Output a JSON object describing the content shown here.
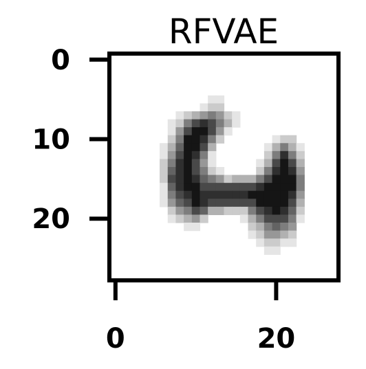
{
  "chart_data": {
    "type": "heatmap",
    "title": "RFVAE",
    "xlabel": "",
    "ylabel": "",
    "grid": false,
    "colormap": "gray_r",
    "xlim": [
      -0.5,
      27.5
    ],
    "ylim": [
      27.5,
      -0.5
    ],
    "x_ticks": [
      0,
      20
    ],
    "x_tick_labels": [
      "0",
      "20"
    ],
    "y_ticks": [
      0,
      10,
      20
    ],
    "y_tick_labels": [
      "0",
      "10",
      "20"
    ],
    "rows": 28,
    "cols": 28,
    "values": [
      "0000000000000000000000000000",
      "0000000000000000000000000000",
      "0000000000000000000000000000",
      "0000000000000000000000000000",
      "0000000000000000000000000000",
      "0000000000001100000000000000",
      "0000000000012200000000000000",
      "0000000012345421000000000000",
      "0000000125787531000000000000",
      "0000000147997410000000000000",
      "0000000259985200000012200000",
      "0000001369973000000135310000",
      "0000001479851000000258520000",
      "0000002589741000001379730000",
      "0000002689752100002589840000",
      "0000002789865423335799950000",
      "0000001689977777778999950000",
      "0000001578988888899999840000",
      "0000001467987777779999730000",
      "0000000245763322257898620000",
      "0000000123420000135777510000",
      "0000000001100000023565400000",
      "0000000000000000012443200000",
      "0000000000000000001221100000",
      "0000000000000000000110000000",
      "0000000000000000000000000000",
      "0000000000000000000000000000",
      "0000000000000000000000000000"
    ]
  }
}
